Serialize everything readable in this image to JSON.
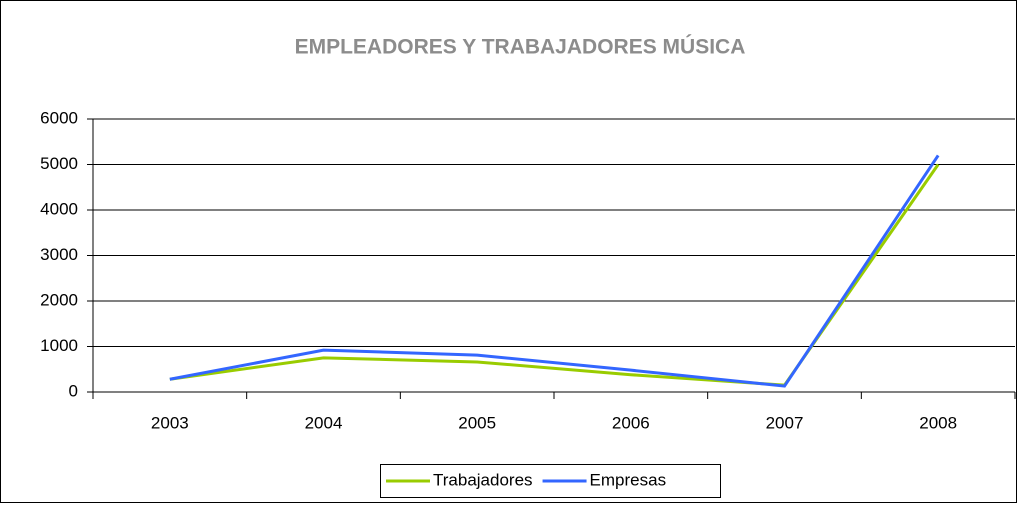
{
  "chart_data": {
    "type": "line",
    "title": "EMPLEADORES Y TRABAJADORES MÚSICA",
    "categories": [
      "2003",
      "2004",
      "2005",
      "2006",
      "2007",
      "2008"
    ],
    "series": [
      {
        "name": "Trabajadores",
        "color": "#99cc00",
        "values": [
          280,
          750,
          660,
          380,
          150,
          5000
        ]
      },
      {
        "name": "Empresas",
        "color": "#3366ff",
        "values": [
          280,
          920,
          810,
          480,
          130,
          5200
        ]
      }
    ],
    "ylim": [
      0,
      6000
    ],
    "yticks": [
      0,
      1000,
      2000,
      3000,
      4000,
      5000,
      6000
    ],
    "grid": true,
    "legend": "bottom"
  }
}
